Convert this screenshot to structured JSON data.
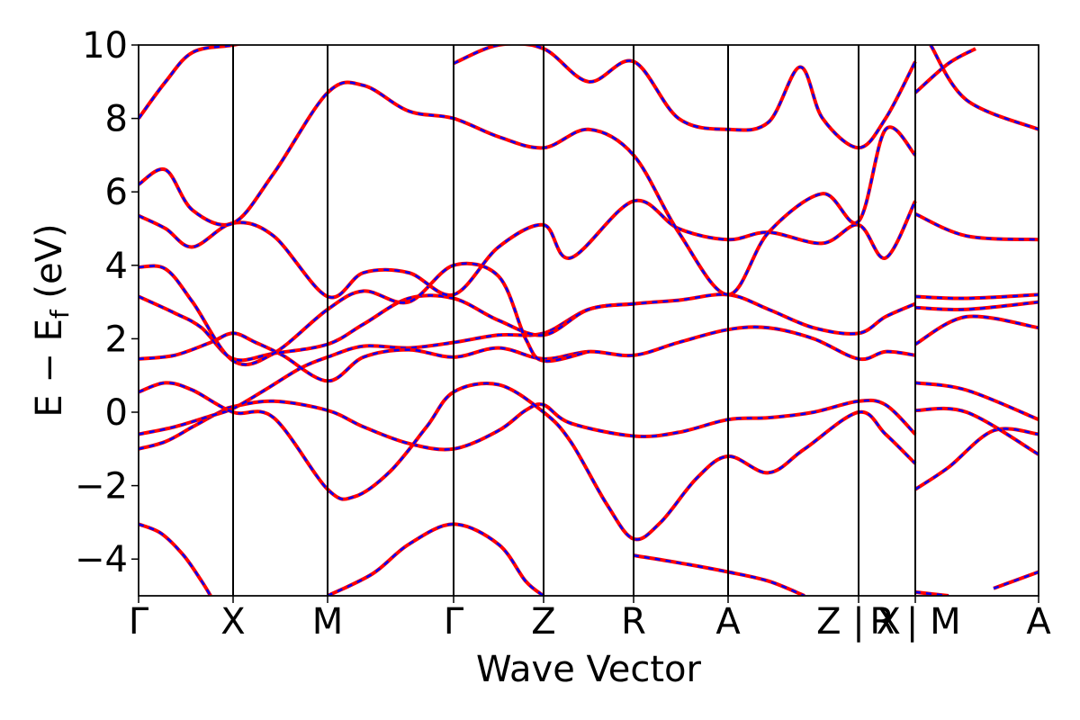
{
  "chart_data": {
    "type": "line",
    "title": "",
    "xlabel": "Wave Vector",
    "ylabel_main": "E − E",
    "ylabel_sub": "f",
    "ylabel_unit": " (eV)",
    "ylim": [
      -5,
      10
    ],
    "yticks": [
      {
        "value": -4,
        "label": "−4"
      },
      {
        "value": -2,
        "label": "−2"
      },
      {
        "value": 0,
        "label": "0"
      },
      {
        "value": 2,
        "label": "2"
      },
      {
        "value": 4,
        "label": "4"
      },
      {
        "value": 6,
        "label": "6"
      },
      {
        "value": 8,
        "label": "8"
      },
      {
        "value": 10,
        "label": "10"
      }
    ],
    "xlim": [
      0,
      10
    ],
    "kpath": [
      {
        "x": 0.0,
        "label": "Γ"
      },
      {
        "x": 1.05,
        "label": "X"
      },
      {
        "x": 2.1,
        "label": "M"
      },
      {
        "x": 3.5,
        "label": "Γ"
      },
      {
        "x": 4.5,
        "label": "Z"
      },
      {
        "x": 5.5,
        "label": "R"
      },
      {
        "x": 6.55,
        "label": "A"
      },
      {
        "x": 8.0,
        "label": "Z | X"
      },
      {
        "x": 8.63,
        "label": "R | M"
      },
      {
        "x": 10.0,
        "label": "A"
      }
    ],
    "line_styles": {
      "dashed_series_color": "#0000ff",
      "solid_series_color": "#ff0000",
      "vline_color": "#000000"
    },
    "bands": [
      [
        [
          0.0,
          -3.05
        ],
        [
          0.25,
          -3.3
        ],
        [
          0.5,
          -3.9
        ],
        [
          0.7,
          -4.6
        ],
        [
          0.8,
          -5.0
        ]
      ],
      [
        [
          0.0,
          -1.0
        ],
        [
          0.3,
          -0.8
        ],
        [
          0.6,
          -0.4
        ],
        [
          0.9,
          0.0
        ],
        [
          1.05,
          0.15
        ],
        [
          1.5,
          0.3
        ],
        [
          2.1,
          0.05
        ],
        [
          2.5,
          -0.4
        ],
        [
          3.0,
          -0.85
        ],
        [
          3.5,
          -1.0
        ],
        [
          4.0,
          -0.5
        ],
        [
          4.3,
          0.05
        ],
        [
          4.5,
          0.2
        ],
        [
          4.8,
          -0.3
        ],
        [
          5.5,
          -0.65
        ],
        [
          6.0,
          -0.55
        ],
        [
          6.55,
          -0.2
        ],
        [
          7.0,
          -0.15
        ],
        [
          7.5,
          0.0
        ],
        [
          8.0,
          0.3
        ],
        [
          8.3,
          0.2
        ],
        [
          8.63,
          -0.6
        ]
      ],
      [
        [
          0.0,
          -0.6
        ],
        [
          0.4,
          -0.4
        ],
        [
          0.8,
          -0.1
        ],
        [
          1.05,
          0.1
        ],
        [
          1.4,
          0.6
        ],
        [
          1.8,
          1.2
        ],
        [
          2.1,
          1.5
        ],
        [
          2.5,
          1.8
        ],
        [
          3.0,
          1.75
        ],
        [
          3.5,
          1.9
        ],
        [
          4.0,
          2.1
        ],
        [
          4.5,
          2.15
        ],
        [
          5.0,
          2.8
        ],
        [
          5.5,
          2.95
        ],
        [
          6.0,
          3.05
        ],
        [
          6.55,
          3.2
        ],
        [
          7.0,
          2.8
        ],
        [
          7.5,
          2.3
        ],
        [
          8.0,
          2.15
        ],
        [
          8.3,
          2.6
        ],
        [
          8.63,
          2.95
        ]
      ],
      [
        [
          0.0,
          0.55
        ],
        [
          0.3,
          0.8
        ],
        [
          0.6,
          0.6
        ],
        [
          1.05,
          0.0
        ],
        [
          1.5,
          -0.15
        ],
        [
          2.1,
          -2.1
        ],
        [
          2.4,
          -2.3
        ],
        [
          2.8,
          -1.6
        ],
        [
          3.2,
          -0.4
        ],
        [
          3.5,
          0.55
        ],
        [
          4.0,
          0.75
        ],
        [
          4.5,
          0.0
        ],
        [
          4.8,
          -0.8
        ],
        [
          5.2,
          -2.5
        ],
        [
          5.5,
          -3.45
        ],
        [
          5.8,
          -3.0
        ],
        [
          6.2,
          -1.8
        ],
        [
          6.55,
          -1.2
        ],
        [
          7.0,
          -1.65
        ],
        [
          7.4,
          -1.0
        ],
        [
          8.0,
          0.0
        ],
        [
          8.3,
          -0.6
        ],
        [
          8.63,
          -1.4
        ]
      ],
      [
        [
          0.0,
          1.45
        ],
        [
          0.4,
          1.55
        ],
        [
          0.8,
          1.9
        ],
        [
          1.05,
          2.15
        ],
        [
          1.3,
          1.9
        ],
        [
          1.6,
          1.55
        ],
        [
          2.1,
          0.85
        ],
        [
          2.5,
          1.5
        ],
        [
          3.0,
          1.7
        ],
        [
          3.5,
          1.5
        ],
        [
          4.0,
          1.75
        ],
        [
          4.5,
          1.45
        ],
        [
          5.0,
          1.65
        ],
        [
          5.5,
          1.55
        ],
        [
          6.0,
          1.9
        ],
        [
          6.55,
          2.25
        ],
        [
          7.0,
          2.3
        ],
        [
          7.5,
          2.0
        ],
        [
          8.0,
          1.45
        ],
        [
          8.3,
          1.65
        ],
        [
          8.63,
          1.55
        ]
      ],
      [
        [
          0.0,
          3.15
        ],
        [
          0.4,
          2.7
        ],
        [
          0.7,
          2.3
        ],
        [
          1.05,
          1.45
        ],
        [
          1.5,
          1.6
        ],
        [
          2.1,
          1.85
        ],
        [
          2.5,
          2.4
        ],
        [
          3.0,
          3.1
        ],
        [
          3.5,
          3.1
        ],
        [
          4.0,
          2.5
        ],
        [
          4.5,
          2.1
        ],
        [
          5.0,
          2.8
        ],
        [
          5.5,
          2.95
        ]
      ],
      [
        [
          0.0,
          3.95
        ],
        [
          0.3,
          3.9
        ],
        [
          0.6,
          3.0
        ],
        [
          1.05,
          1.4
        ],
        [
          1.5,
          1.6
        ],
        [
          2.1,
          2.8
        ],
        [
          2.5,
          3.3
        ],
        [
          3.0,
          3.0
        ],
        [
          3.5,
          4.0
        ],
        [
          4.0,
          3.7
        ],
        [
          4.3,
          2.0
        ],
        [
          4.5,
          1.4
        ],
        [
          5.0,
          1.65
        ]
      ],
      [
        [
          0.0,
          5.35
        ],
        [
          0.3,
          5.0
        ],
        [
          0.6,
          4.5
        ],
        [
          1.05,
          5.15
        ],
        [
          1.5,
          4.8
        ],
        [
          2.1,
          3.15
        ],
        [
          2.5,
          3.8
        ],
        [
          3.0,
          3.8
        ],
        [
          3.5,
          3.2
        ],
        [
          4.0,
          4.5
        ],
        [
          4.5,
          5.1
        ],
        [
          4.8,
          4.2
        ],
        [
          5.5,
          5.75
        ],
        [
          6.0,
          5.0
        ],
        [
          6.55,
          4.7
        ],
        [
          7.0,
          4.9
        ],
        [
          7.6,
          4.6
        ],
        [
          8.0,
          5.1
        ],
        [
          8.3,
          4.2
        ],
        [
          8.63,
          5.75
        ]
      ],
      [
        [
          0.0,
          6.2
        ],
        [
          0.3,
          6.6
        ],
        [
          0.6,
          5.5
        ],
        [
          1.05,
          5.15
        ],
        [
          1.5,
          6.5
        ],
        [
          2.1,
          8.7
        ],
        [
          2.5,
          8.9
        ],
        [
          3.0,
          8.2
        ],
        [
          3.5,
          8.0
        ],
        [
          4.0,
          7.5
        ],
        [
          4.5,
          7.2
        ],
        [
          5.0,
          7.7
        ],
        [
          5.5,
          7.0
        ],
        [
          6.0,
          4.9
        ],
        [
          6.55,
          3.2
        ],
        [
          7.0,
          4.9
        ],
        [
          7.6,
          5.95
        ],
        [
          8.0,
          5.2
        ],
        [
          8.3,
          7.7
        ],
        [
          8.63,
          7.0
        ]
      ],
      [
        [
          0.0,
          8.0
        ],
        [
          0.3,
          9.0
        ],
        [
          0.6,
          9.8
        ],
        [
          1.05,
          10.0
        ],
        [
          1.5,
          10.2
        ]
      ],
      [
        [
          3.5,
          9.5
        ],
        [
          4.0,
          10.0
        ],
        [
          4.5,
          9.9
        ],
        [
          5.0,
          9.0
        ],
        [
          5.5,
          9.55
        ],
        [
          6.0,
          8.0
        ],
        [
          6.55,
          7.7
        ],
        [
          7.0,
          7.9
        ],
        [
          7.35,
          9.4
        ],
        [
          7.6,
          8.0
        ],
        [
          8.0,
          7.2
        ],
        [
          8.3,
          8.0
        ],
        [
          8.63,
          9.55
        ]
      ],
      [
        [
          8.63,
          -2.1
        ],
        [
          9.0,
          -1.5
        ],
        [
          9.5,
          -0.5
        ],
        [
          10.0,
          -0.6
        ]
      ],
      [
        [
          8.63,
          0.05
        ],
        [
          9.2,
          0.0
        ],
        [
          10.0,
          -1.15
        ]
      ],
      [
        [
          8.63,
          0.8
        ],
        [
          9.2,
          0.6
        ],
        [
          10.0,
          -0.2
        ]
      ],
      [
        [
          8.63,
          1.85
        ],
        [
          9.2,
          2.6
        ],
        [
          10.0,
          2.3
        ]
      ],
      [
        [
          8.63,
          2.85
        ],
        [
          9.2,
          2.8
        ],
        [
          10.0,
          3.0
        ]
      ],
      [
        [
          8.63,
          3.15
        ],
        [
          9.2,
          3.1
        ],
        [
          10.0,
          3.2
        ]
      ],
      [
        [
          8.63,
          5.4
        ],
        [
          9.2,
          4.8
        ],
        [
          10.0,
          4.7
        ]
      ],
      [
        [
          8.63,
          8.7
        ],
        [
          9.0,
          9.5
        ],
        [
          9.3,
          9.9
        ]
      ],
      [
        [
          8.8,
          10.0
        ],
        [
          9.2,
          8.5
        ],
        [
          10.0,
          7.7
        ]
      ],
      [
        [
          8.63,
          -4.9
        ],
        [
          9.0,
          -5.0
        ]
      ],
      [
        [
          9.5,
          -4.8
        ],
        [
          10.0,
          -4.35
        ]
      ],
      [
        [
          5.5,
          -3.9
        ],
        [
          6.0,
          -4.1
        ],
        [
          6.55,
          -4.35
        ],
        [
          7.0,
          -4.6
        ],
        [
          7.4,
          -5.0
        ]
      ],
      [
        [
          2.1,
          -5.0
        ],
        [
          2.6,
          -4.4
        ],
        [
          3.0,
          -3.6
        ],
        [
          3.5,
          -3.05
        ],
        [
          4.0,
          -3.6
        ],
        [
          4.3,
          -4.6
        ],
        [
          4.5,
          -5.0
        ]
      ]
    ]
  }
}
